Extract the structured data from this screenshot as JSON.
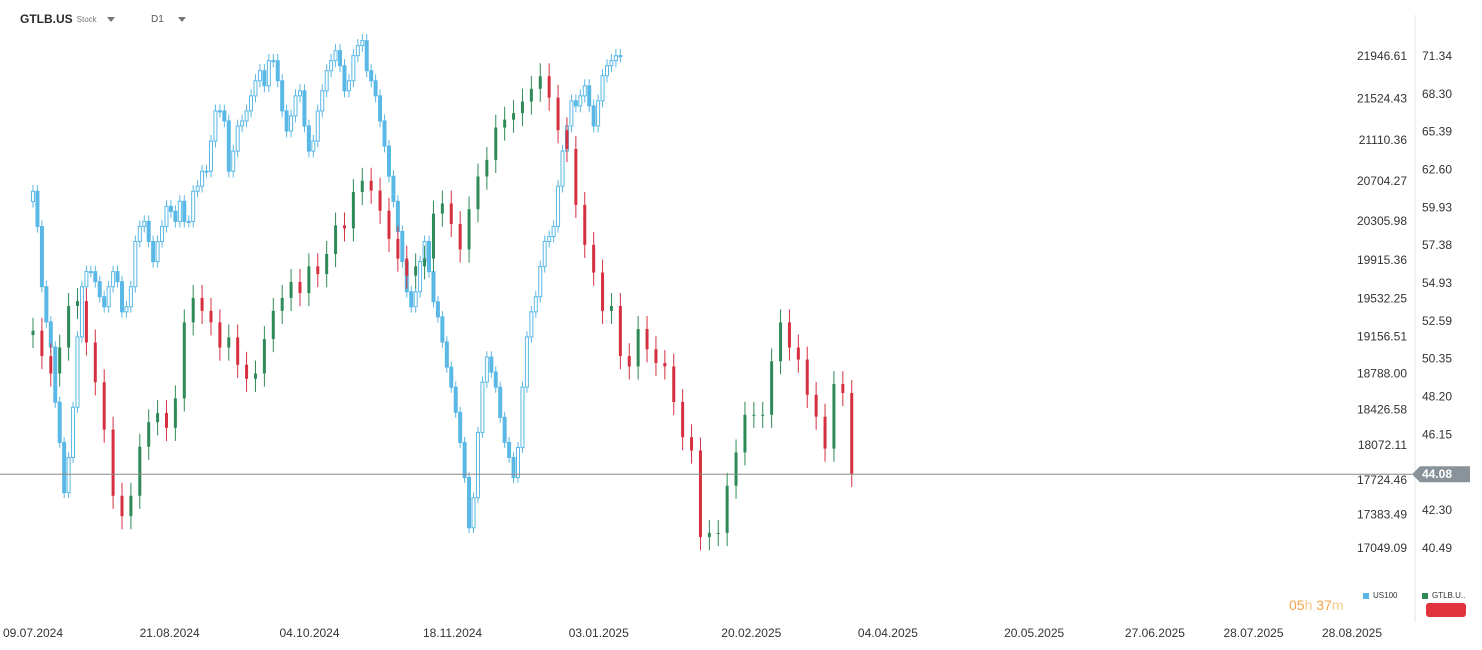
{
  "header": {
    "symbol": "GTLB.US",
    "symbol_type": "Stock",
    "timeframe": "D1"
  },
  "timer": {
    "hours": "05",
    "hours_unit": "h",
    "minutes": "37",
    "minutes_unit": "m"
  },
  "legend": [
    {
      "label": "US100",
      "color": "#5ab8e6"
    },
    {
      "label": "GTLB.U..",
      "color": "#2e8b57"
    }
  ],
  "colors": {
    "up": "#2e8b57",
    "down": "#d62f3f",
    "overlay": "#5ab8e6",
    "price_tag": "#8a9399",
    "grid_line": "#888888"
  },
  "chart_data": {
    "type": "candlestick",
    "x_ticks": [
      "09.07.2024",
      "21.08.2024",
      "04.10.2024",
      "18.11.2024",
      "03.01.2025",
      "20.02.2025",
      "04.04.2025",
      "20.05.2025",
      "27.06.2025",
      "28.07.2025",
      "28.08.2025"
    ],
    "left_axis": {
      "label": "US100",
      "ticks": [
        21946.61,
        21524.43,
        21110.36,
        20704.27,
        20305.98,
        19915.36,
        19532.25,
        19156.51,
        18788.0,
        18426.58,
        18072.11,
        17724.46,
        17383.49,
        17049.09
      ]
    },
    "right_axis": {
      "label": "GTLB.US",
      "ticks": [
        71.34,
        68.3,
        65.39,
        62.6,
        59.93,
        57.38,
        54.93,
        52.59,
        50.35,
        48.2,
        46.15,
        42.3,
        40.49
      ]
    },
    "current_price": 44.08,
    "series": [
      {
        "name": "US100",
        "axis": "left",
        "x_start": "2024-07-09",
        "step_days": 1.4,
        "closes": [
          20600,
          20250,
          19650,
          19300,
          19050,
          18500,
          18100,
          17600,
          17950,
          18450,
          19150,
          19650,
          19800,
          19800,
          19700,
          19550,
          19450,
          19650,
          19800,
          19700,
          19400,
          19450,
          19650,
          20100,
          20250,
          20300,
          20100,
          19900,
          20100,
          20250,
          20450,
          20400,
          20300,
          20500,
          20300,
          20300,
          20600,
          20650,
          20800,
          20800,
          21100,
          21400,
          21400,
          21300,
          20800,
          21000,
          21250,
          21300,
          21400,
          21550,
          21700,
          21800,
          21650,
          21900,
          21900,
          21700,
          21400,
          21200,
          21350,
          21550,
          21600,
          21250,
          21000,
          21100,
          21400,
          21600,
          21800,
          21900,
          22000,
          21850,
          21600,
          21700,
          21950,
          22050,
          22100,
          21800,
          21700,
          21550,
          21300,
          21050,
          20750,
          20500,
          20200,
          19900,
          19600,
          19450,
          19600,
          19900,
          20100,
          19800,
          19500,
          19350,
          19100,
          18850,
          18650,
          18400,
          18100,
          17750,
          17250,
          17550,
          18200,
          18700,
          18950,
          18800,
          18650,
          18350,
          18100,
          17950,
          17750,
          18050,
          18650,
          19150,
          19400,
          19550,
          19850,
          20100,
          20150,
          20250,
          20650,
          21000,
          21250,
          21500,
          21450,
          21550,
          21650,
          21450,
          21250,
          21500,
          21750,
          21850,
          21900,
          21950,
          21950
        ]
      },
      {
        "name": "GTLB.US",
        "axis": "right",
        "x_start": "2024-07-09",
        "step_days": 2.8,
        "closes": [
          52.0,
          50.5,
          49.5,
          51.0,
          53.5,
          53.8,
          51.3,
          49.0,
          46.4,
          43.0,
          42.0,
          43.0,
          45.5,
          46.8,
          47.3,
          46.5,
          48.1,
          52.5,
          54.0,
          53.2,
          52.5,
          51.0,
          51.6,
          50.0,
          49.2,
          49.5,
          51.5,
          53.2,
          54.0,
          55.0,
          54.3,
          56.0,
          55.5,
          56.8,
          58.7,
          58.5,
          61.0,
          61.8,
          61.1,
          59.7,
          57.8,
          56.5,
          55.4,
          56.0,
          56.5,
          59.5,
          60.2,
          58.8,
          57.1,
          59.8,
          62.1,
          63.3,
          65.7,
          66.3,
          66.8,
          67.7,
          68.7,
          69.7,
          68.0,
          65.5,
          64.1,
          60.1,
          57.4,
          55.6,
          53.2,
          53.5,
          50.5,
          49.9,
          52.1,
          50.9,
          50.1,
          49.9,
          47.9,
          46.0,
          45.3,
          41.0,
          41.2,
          41.2,
          43.5,
          45.2,
          47.2,
          47.2,
          47.2,
          50.2,
          52.5,
          51.0,
          50.3,
          48.3,
          47.1,
          45.4,
          48.9,
          48.4,
          44.1
        ]
      }
    ]
  }
}
